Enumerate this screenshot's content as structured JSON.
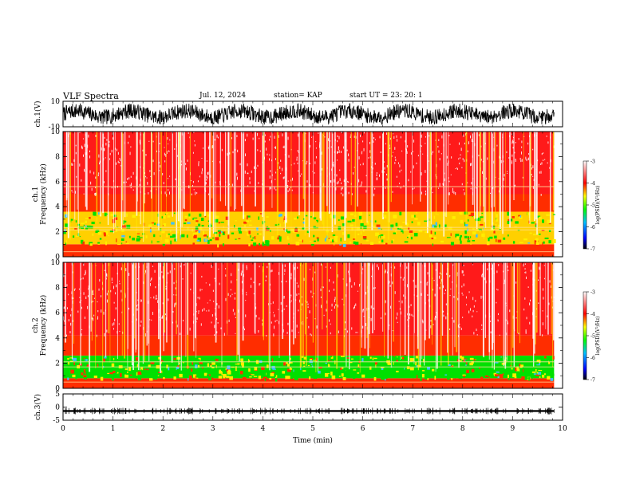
{
  "header": {
    "title": "VLF Spectra",
    "date": "Jul. 12, 2024",
    "station": "station= KAP",
    "start": "start UT = 23: 20: 1"
  },
  "colors": {
    "spectrogram_background": "#ffffff",
    "spectrogram_low": "#0000ff",
    "spectrogram_mid": "#00ff00",
    "spectrogram_high": "#ffff00",
    "spectrogram_max": "#ff0000",
    "trace": "#000000"
  },
  "chart_data": [
    {
      "type": "line",
      "ylabel": "ch.1(V)",
      "xlim": [
        0,
        10
      ],
      "ylim": [
        -10,
        10
      ],
      "yticks": [
        "10",
        "-10"
      ],
      "description_values": {
        "baseline_V": 0,
        "typical_amplitude_V": 6,
        "slow_oscillation_periods_over_range": 9
      }
    },
    {
      "type": "heatmap",
      "ylabel": "ch.1\nFrequency (kHz)",
      "xlim": [
        0,
        10
      ],
      "ylim": [
        0,
        10
      ],
      "yticks": [
        "0",
        "2",
        "4",
        "6",
        "8",
        "10"
      ],
      "colorbar": {
        "label": "log(PSD)(V²/Hz)",
        "range": [
          -7,
          -3
        ],
        "ticks": [
          "-3",
          "-4",
          "-5",
          "-6",
          "-7"
        ]
      },
      "bands_kHz": [
        {
          "from": 0,
          "to": 1.0,
          "level": -4.2
        },
        {
          "from": 1.0,
          "to": 3.6,
          "level": -4.8
        },
        {
          "from": 3.6,
          "to": 5.0,
          "level": -4.2
        },
        {
          "from": 5.0,
          "to": 10.0,
          "level": -3.6
        }
      ],
      "tones_kHz": [
        0.4,
        2.15,
        2.35,
        5.6
      ]
    },
    {
      "type": "heatmap",
      "ylabel": "ch.2\nFrequency (kHz)",
      "xlim": [
        0,
        10
      ],
      "ylim": [
        0,
        10
      ],
      "yticks": [
        "0",
        "2",
        "4",
        "6",
        "8",
        "10"
      ],
      "colorbar": {
        "label": "log(PSD)(V²/Hz)",
        "range": [
          -7,
          -3
        ],
        "ticks": [
          "-3",
          "-4",
          "-5",
          "-6",
          "-7"
        ]
      },
      "bands_kHz": [
        {
          "from": 0,
          "to": 0.8,
          "level": -4.2
        },
        {
          "from": 0.8,
          "to": 2.6,
          "level": -4.9
        },
        {
          "from": 2.6,
          "to": 4.2,
          "level": -4.1
        },
        {
          "from": 4.2,
          "to": 10.0,
          "level": -3.5
        }
      ],
      "tones_kHz": [
        0.5,
        1.7,
        2.1
      ]
    },
    {
      "type": "line",
      "ylabel": "ch.3(V)",
      "xlabel": "Time (min)",
      "xlim": [
        0,
        10
      ],
      "ylim": [
        -5,
        5
      ],
      "yticks": [
        "5",
        "0",
        "-5"
      ],
      "xticks": [
        "0",
        "1",
        "2",
        "3",
        "4",
        "5",
        "6",
        "7",
        "8",
        "9",
        "10"
      ],
      "description_values": {
        "baseline_V": -1.5,
        "band_halfwidth_V": 0.35
      }
    }
  ]
}
